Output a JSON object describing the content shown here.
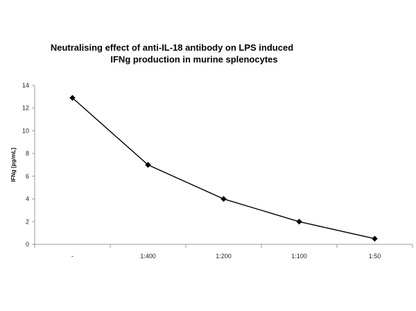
{
  "chart_data": {
    "type": "line",
    "title_line_1": "Neutralising effect of anti-IL-18 antibody on LPS induced",
    "title_line_2": "IFNg production in murine splenocytes",
    "xlabel": "",
    "ylabel": "IFNg [pg/mL]",
    "categories": [
      "-",
      "1:400",
      "1:200",
      "1:100",
      "1:50"
    ],
    "series": [
      {
        "values": [
          12.9,
          7.0,
          4.0,
          2.0,
          0.5
        ]
      }
    ],
    "ylim": [
      0,
      14
    ],
    "yticks": [
      "0",
      "2",
      "4",
      "6",
      "8",
      "10",
      "12",
      "14"
    ],
    "grid": false,
    "line_color": "#000000"
  }
}
